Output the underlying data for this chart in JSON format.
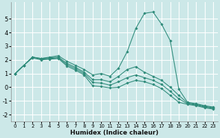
{
  "title": "",
  "xlabel": "Humidex (Indice chaleur)",
  "ylabel": "",
  "bg_color": "#cce8e8",
  "grid_color": "#ffffff",
  "line_color": "#2e8b7a",
  "marker_color": "#2e8b7a",
  "xlim": [
    -0.5,
    23.5
  ],
  "ylim": [
    -2.5,
    6.2
  ],
  "xticks": [
    0,
    1,
    2,
    3,
    4,
    5,
    6,
    7,
    8,
    9,
    10,
    11,
    12,
    13,
    14,
    15,
    16,
    17,
    18,
    19,
    20,
    21,
    22,
    23
  ],
  "yticks": [
    -2,
    -1,
    0,
    1,
    2,
    3,
    4,
    5
  ],
  "series": [
    [
      1.0,
      1.6,
      2.2,
      2.1,
      2.2,
      2.3,
      1.9,
      1.6,
      1.3,
      0.9,
      1.0,
      0.8,
      1.4,
      2.6,
      4.3,
      5.4,
      5.5,
      4.6,
      3.4,
      -0.15,
      -1.1,
      -1.2,
      -1.35,
      -1.45
    ],
    [
      1.0,
      1.6,
      2.2,
      2.1,
      2.15,
      2.2,
      1.75,
      1.45,
      1.1,
      0.55,
      0.55,
      0.4,
      0.8,
      1.3,
      1.5,
      1.1,
      0.8,
      0.5,
      0.0,
      -0.6,
      -1.15,
      -1.25,
      -1.4,
      -1.5
    ],
    [
      1.0,
      1.6,
      2.2,
      2.05,
      2.1,
      2.15,
      1.65,
      1.35,
      1.0,
      0.35,
      0.3,
      0.15,
      0.4,
      0.7,
      0.9,
      0.7,
      0.5,
      0.2,
      -0.3,
      -0.85,
      -1.2,
      -1.3,
      -1.45,
      -1.55
    ],
    [
      1.0,
      1.6,
      2.15,
      2.0,
      2.05,
      2.1,
      1.55,
      1.25,
      0.9,
      0.1,
      0.05,
      -0.05,
      0.0,
      0.3,
      0.5,
      0.4,
      0.2,
      -0.1,
      -0.6,
      -1.1,
      -1.25,
      -1.35,
      -1.5,
      -1.6
    ]
  ]
}
